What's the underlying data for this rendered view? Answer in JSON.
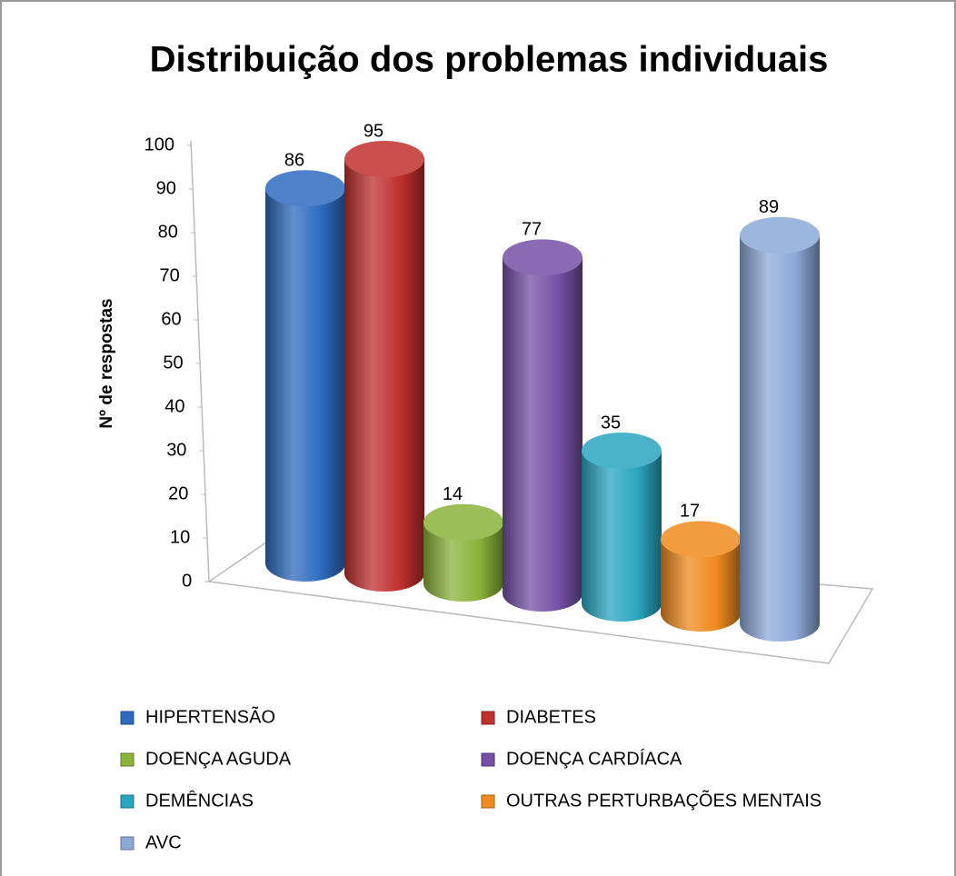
{
  "chart_data": {
    "type": "bar3d",
    "title": "Distribuição dos problemas individuais",
    "ylabel": "Nº de respostas",
    "categories": [
      null
    ],
    "series": [
      {
        "name": "HIPERTENSÃO",
        "color": "#2e6bbf",
        "values": [
          86
        ]
      },
      {
        "name": "DIABETES",
        "color": "#c0302e",
        "values": [
          95
        ]
      },
      {
        "name": "DOENÇA AGUDA",
        "color": "#8ab33a",
        "values": [
          14
        ]
      },
      {
        "name": "DOENÇA CARDÍACA",
        "color": "#7550a6",
        "values": [
          77
        ]
      },
      {
        "name": "DEMÊNCIAS",
        "color": "#2aa6c0",
        "values": [
          35
        ]
      },
      {
        "name": "OUTRAS PERTURBAÇÕES MENTAIS",
        "color": "#f08a1e",
        "values": [
          17
        ]
      },
      {
        "name": "AVC",
        "color": "#8ca9d8",
        "values": [
          89
        ]
      }
    ],
    "ylim": [
      0,
      100
    ],
    "yticks": [
      0,
      10,
      20,
      30,
      40,
      50,
      60,
      70,
      80,
      90,
      100
    ],
    "legend": "bottom"
  }
}
